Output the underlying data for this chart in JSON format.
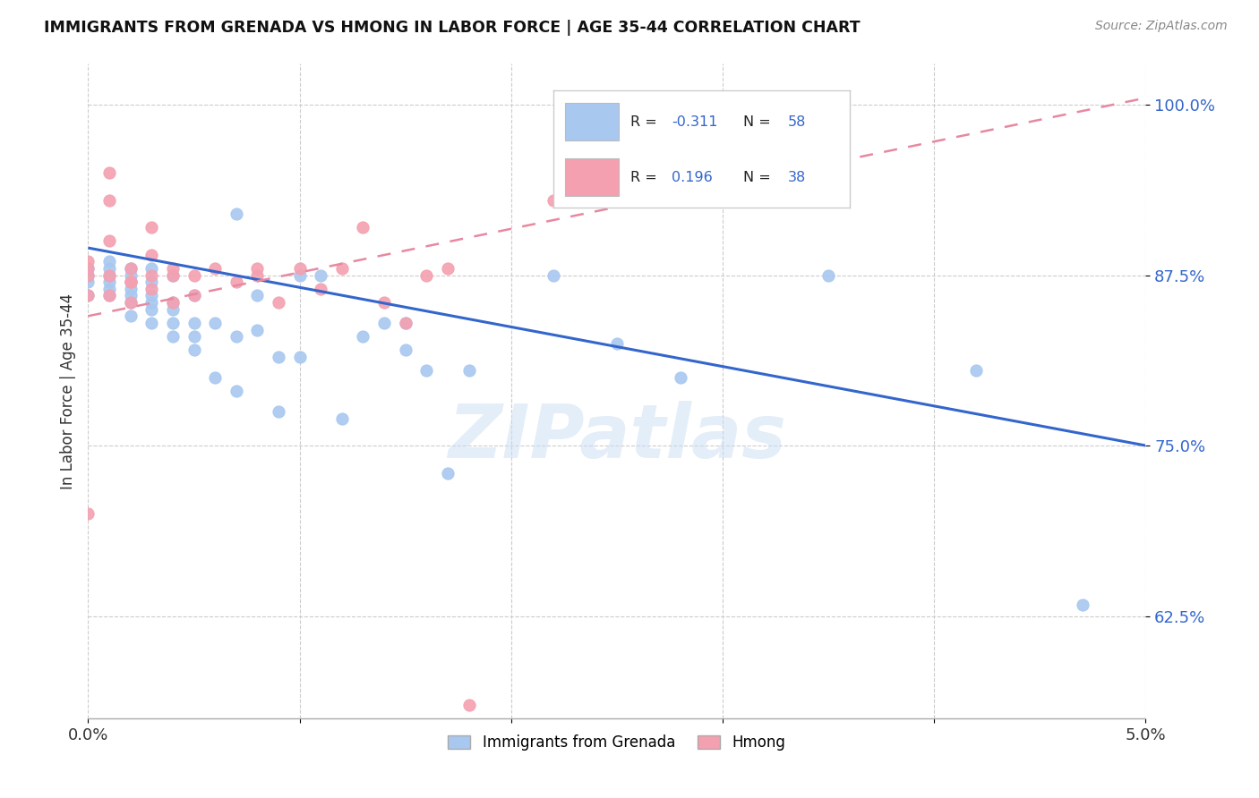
{
  "title": "IMMIGRANTS FROM GRENADA VS HMONG IN LABOR FORCE | AGE 35-44 CORRELATION CHART",
  "source": "Source: ZipAtlas.com",
  "ylabel": "In Labor Force | Age 35-44",
  "yticks": [
    0.625,
    0.75,
    0.875,
    1.0
  ],
  "ytick_labels": [
    "62.5%",
    "75.0%",
    "87.5%",
    "100.0%"
  ],
  "xlim": [
    0.0,
    0.05
  ],
  "ylim": [
    0.55,
    1.03
  ],
  "grenada_color": "#a8c8f0",
  "hmong_color": "#f4a0b0",
  "grenada_R": -0.311,
  "grenada_N": 58,
  "hmong_R": 0.196,
  "hmong_N": 38,
  "watermark_text": "ZIPatlas",
  "legend_R_color": "#3366cc",
  "trend_blue": "#3366cc",
  "trend_pink": "#e888a0",
  "grenada_line_y0": 0.895,
  "grenada_line_y1": 0.75,
  "hmong_line_y0": 0.845,
  "hmong_line_y1": 1.005,
  "grenada_x": [
    0.0,
    0.0,
    0.0,
    0.0,
    0.001,
    0.001,
    0.001,
    0.001,
    0.001,
    0.001,
    0.002,
    0.002,
    0.002,
    0.002,
    0.002,
    0.002,
    0.002,
    0.003,
    0.003,
    0.003,
    0.003,
    0.003,
    0.003,
    0.004,
    0.004,
    0.004,
    0.004,
    0.004,
    0.005,
    0.005,
    0.005,
    0.005,
    0.006,
    0.006,
    0.007,
    0.007,
    0.007,
    0.008,
    0.008,
    0.009,
    0.009,
    0.01,
    0.01,
    0.011,
    0.012,
    0.013,
    0.014,
    0.015,
    0.015,
    0.016,
    0.017,
    0.018,
    0.022,
    0.025,
    0.028,
    0.035,
    0.042,
    0.047
  ],
  "grenada_y": [
    0.86,
    0.87,
    0.875,
    0.88,
    0.86,
    0.865,
    0.87,
    0.875,
    0.88,
    0.885,
    0.845,
    0.855,
    0.86,
    0.865,
    0.87,
    0.875,
    0.88,
    0.84,
    0.85,
    0.855,
    0.86,
    0.87,
    0.88,
    0.83,
    0.84,
    0.85,
    0.855,
    0.875,
    0.82,
    0.83,
    0.84,
    0.86,
    0.8,
    0.84,
    0.79,
    0.83,
    0.92,
    0.835,
    0.86,
    0.775,
    0.815,
    0.815,
    0.875,
    0.875,
    0.77,
    0.83,
    0.84,
    0.82,
    0.84,
    0.805,
    0.73,
    0.805,
    0.875,
    0.825,
    0.8,
    0.875,
    0.805,
    0.633
  ],
  "hmong_x": [
    0.0,
    0.0,
    0.0,
    0.0,
    0.0,
    0.001,
    0.001,
    0.001,
    0.001,
    0.001,
    0.002,
    0.002,
    0.002,
    0.002,
    0.003,
    0.003,
    0.003,
    0.003,
    0.004,
    0.004,
    0.004,
    0.005,
    0.005,
    0.006,
    0.007,
    0.008,
    0.008,
    0.009,
    0.01,
    0.011,
    0.012,
    0.013,
    0.014,
    0.015,
    0.016,
    0.017,
    0.018,
    0.022
  ],
  "hmong_y": [
    0.86,
    0.875,
    0.88,
    0.885,
    0.7,
    0.86,
    0.875,
    0.9,
    0.93,
    0.95,
    0.855,
    0.87,
    0.88,
    0.87,
    0.865,
    0.875,
    0.89,
    0.91,
    0.855,
    0.875,
    0.88,
    0.875,
    0.86,
    0.88,
    0.87,
    0.875,
    0.88,
    0.855,
    0.88,
    0.865,
    0.88,
    0.91,
    0.855,
    0.84,
    0.875,
    0.88,
    0.56,
    0.93
  ]
}
